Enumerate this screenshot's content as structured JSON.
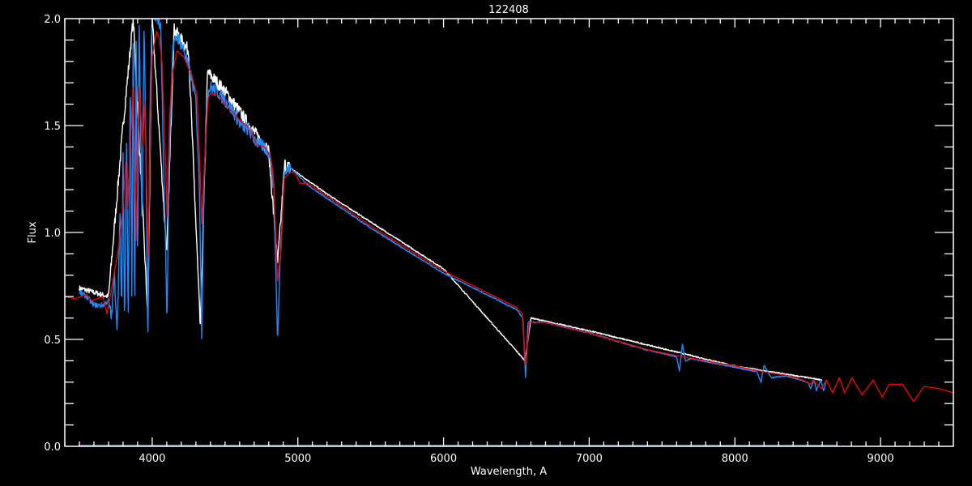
{
  "chart_data": {
    "type": "line",
    "title": "122408",
    "xlabel": "Wavelength, A",
    "ylabel": "Flux",
    "xlim": [
      3400,
      9500
    ],
    "ylim": [
      0.0,
      2.0
    ],
    "x_ticks": [
      4000,
      5000,
      6000,
      7000,
      8000,
      9000
    ],
    "x_tick_labels": [
      "4000",
      "5000",
      "6000",
      "7000",
      "8000",
      "9000"
    ],
    "y_ticks": [
      0.0,
      0.5,
      1.0,
      1.5,
      2.0
    ],
    "y_tick_labels": [
      "0.0",
      "0.5",
      "1.0",
      "1.5",
      "2.0"
    ],
    "x_minor_step": 100,
    "y_minor_step": 0.1,
    "grid": false,
    "background": "#000000",
    "axis_color": "#ffffff",
    "series": [
      {
        "color": "#ffffff",
        "points": [
          [
            3500,
            0.74
          ],
          [
            3700,
            0.7
          ],
          [
            3800,
            1.5
          ],
          [
            3870,
            2.0
          ],
          [
            3970,
            0.6
          ],
          [
            4000,
            2.0
          ],
          [
            4100,
            0.9
          ],
          [
            4150,
            1.95
          ],
          [
            4250,
            1.85
          ],
          [
            4330,
            0.55
          ],
          [
            4380,
            1.75
          ],
          [
            4500,
            1.66
          ],
          [
            4700,
            1.47
          ],
          [
            4800,
            1.38
          ],
          [
            4861,
            0.85
          ],
          [
            4910,
            1.32
          ],
          [
            5200,
            1.18
          ],
          [
            6000,
            0.83
          ],
          [
            6560,
            0.4
          ],
          [
            6600,
            0.6
          ],
          [
            7000,
            0.54
          ],
          [
            8000,
            0.375
          ],
          [
            8600,
            0.31
          ]
        ]
      },
      {
        "color": "#1a8cff",
        "points": [
          [
            3500,
            0.72
          ],
          [
            3550,
            0.7
          ],
          [
            3600,
            0.66
          ],
          [
            3660,
            0.66
          ],
          [
            3700,
            0.68
          ],
          [
            3720,
            0.6
          ],
          [
            3740,
            0.8
          ],
          [
            3760,
            0.55
          ],
          [
            3780,
            1.1
          ],
          [
            3790,
            0.6
          ],
          [
            3800,
            1.4
          ],
          [
            3810,
            0.55
          ],
          [
            3825,
            1.5
          ],
          [
            3835,
            0.55
          ],
          [
            3850,
            1.75
          ],
          [
            3860,
            0.7
          ],
          [
            3870,
            2.0
          ],
          [
            3880,
            0.55
          ],
          [
            3890,
            1.9
          ],
          [
            3900,
            0.8
          ],
          [
            3910,
            2.0
          ],
          [
            3930,
            1.0
          ],
          [
            3945,
            2.0
          ],
          [
            3960,
            1.2
          ],
          [
            3970,
            0.45
          ],
          [
            3985,
            1.6
          ],
          [
            4000,
            2.0
          ],
          [
            4040,
            2.0
          ],
          [
            4060,
            1.95
          ],
          [
            4075,
            1.4
          ],
          [
            4090,
            1.0
          ],
          [
            4102,
            0.57
          ],
          [
            4115,
            1.3
          ],
          [
            4140,
            1.85
          ],
          [
            4170,
            1.92
          ],
          [
            4220,
            1.85
          ],
          [
            4270,
            1.72
          ],
          [
            4300,
            1.62
          ],
          [
            4325,
            1.2
          ],
          [
            4340,
            0.53
          ],
          [
            4355,
            1.2
          ],
          [
            4380,
            1.65
          ],
          [
            4400,
            1.68
          ],
          [
            4460,
            1.65
          ],
          [
            4520,
            1.6
          ],
          [
            4570,
            1.55
          ],
          [
            4610,
            1.5
          ],
          [
            4660,
            1.48
          ],
          [
            4720,
            1.42
          ],
          [
            4770,
            1.4
          ],
          [
            4810,
            1.36
          ],
          [
            4835,
            1.2
          ],
          [
            4861,
            0.49
          ],
          [
            4880,
            0.9
          ],
          [
            4905,
            1.28
          ],
          [
            4950,
            1.3
          ],
          [
            5000,
            1.27
          ],
          [
            5070,
            1.22
          ],
          [
            5200,
            1.16
          ],
          [
            5500,
            1.02
          ],
          [
            6000,
            0.81
          ],
          [
            6500,
            0.64
          ],
          [
            6545,
            0.6
          ],
          [
            6563,
            0.32
          ],
          [
            6580,
            0.58
          ],
          [
            6700,
            0.58
          ],
          [
            7000,
            0.53
          ],
          [
            7400,
            0.45
          ],
          [
            7600,
            0.42
          ],
          [
            7620,
            0.35
          ],
          [
            7640,
            0.48
          ],
          [
            7660,
            0.4
          ],
          [
            7700,
            0.41
          ],
          [
            8000,
            0.37
          ],
          [
            8150,
            0.35
          ],
          [
            8180,
            0.3
          ],
          [
            8200,
            0.38
          ],
          [
            8250,
            0.32
          ],
          [
            8350,
            0.33
          ],
          [
            8450,
            0.31
          ],
          [
            8500,
            0.3
          ],
          [
            8520,
            0.27
          ],
          [
            8545,
            0.31
          ],
          [
            8560,
            0.26
          ],
          [
            8590,
            0.31
          ],
          [
            8610,
            0.26
          ],
          [
            8625,
            0.3
          ]
        ]
      },
      {
        "color": "#ff0000",
        "points": [
          [
            3400,
            0.7
          ],
          [
            3472,
            0.69
          ],
          [
            3550,
            0.71
          ],
          [
            3585,
            0.68
          ],
          [
            3660,
            0.7
          ],
          [
            3690,
            0.62
          ],
          [
            3720,
            0.73
          ],
          [
            3770,
            0.93
          ],
          [
            3800,
            1.12
          ],
          [
            3818,
            1.33
          ],
          [
            3830,
            1.11
          ],
          [
            3845,
            1.33
          ],
          [
            3868,
            1.68
          ],
          [
            3880,
            1.41
          ],
          [
            3890,
            0.96
          ],
          [
            3910,
            1.68
          ],
          [
            3935,
            1.41
          ],
          [
            3950,
            1.61
          ],
          [
            3972,
            0.89
          ],
          [
            3990,
            1.55
          ],
          [
            4000,
            1.82
          ],
          [
            4030,
            1.94
          ],
          [
            4050,
            1.91
          ],
          [
            4068,
            1.79
          ],
          [
            4080,
            1.55
          ],
          [
            4095,
            1.25
          ],
          [
            4102,
            1.07
          ],
          [
            4120,
            1.55
          ],
          [
            4140,
            1.75
          ],
          [
            4170,
            1.85
          ],
          [
            4218,
            1.82
          ],
          [
            4273,
            1.73
          ],
          [
            4308,
            1.64
          ],
          [
            4330,
            1.27
          ],
          [
            4340,
            1.04
          ],
          [
            4365,
            1.41
          ],
          [
            4385,
            1.63
          ],
          [
            4400,
            1.65
          ],
          [
            4457,
            1.64
          ],
          [
            4513,
            1.59
          ],
          [
            4568,
            1.55
          ],
          [
            4605,
            1.52
          ],
          [
            4663,
            1.49
          ],
          [
            4718,
            1.41
          ],
          [
            4774,
            1.4
          ],
          [
            4811,
            1.36
          ],
          [
            4830,
            1.28
          ],
          [
            4848,
            1.0
          ],
          [
            4861,
            0.77
          ],
          [
            4886,
            0.93
          ],
          [
            4905,
            1.25
          ],
          [
            4942,
            1.28
          ],
          [
            4980,
            1.28
          ],
          [
            5016,
            1.23
          ],
          [
            5070,
            1.23
          ],
          [
            5200,
            1.17
          ],
          [
            5500,
            1.03
          ],
          [
            6000,
            0.82
          ],
          [
            6500,
            0.65
          ],
          [
            6540,
            0.62
          ],
          [
            6563,
            0.38
          ],
          [
            6590,
            0.58
          ],
          [
            6700,
            0.58
          ],
          [
            7000,
            0.53
          ],
          [
            7411,
            0.45
          ],
          [
            7633,
            0.42
          ],
          [
            7967,
            0.38
          ],
          [
            8189,
            0.35
          ],
          [
            8372,
            0.33
          ],
          [
            8467,
            0.31
          ],
          [
            8520,
            0.29
          ],
          [
            8535,
            0.31
          ],
          [
            8550,
            0.3
          ],
          [
            8594,
            0.27
          ],
          [
            8628,
            0.31
          ],
          [
            8672,
            0.25
          ],
          [
            8717,
            0.32
          ],
          [
            8754,
            0.25
          ],
          [
            8804,
            0.32
          ],
          [
            8874,
            0.24
          ],
          [
            8950,
            0.31
          ],
          [
            9012,
            0.23
          ],
          [
            9060,
            0.29
          ],
          [
            9150,
            0.29
          ],
          [
            9228,
            0.21
          ],
          [
            9300,
            0.28
          ],
          [
            9400,
            0.27
          ],
          [
            9505,
            0.25
          ]
        ]
      },
      {
        "color": "#1a8cff",
        "points": [
          [
            3500,
            0.005
          ],
          [
            8700,
            0.005
          ]
        ]
      }
    ]
  }
}
